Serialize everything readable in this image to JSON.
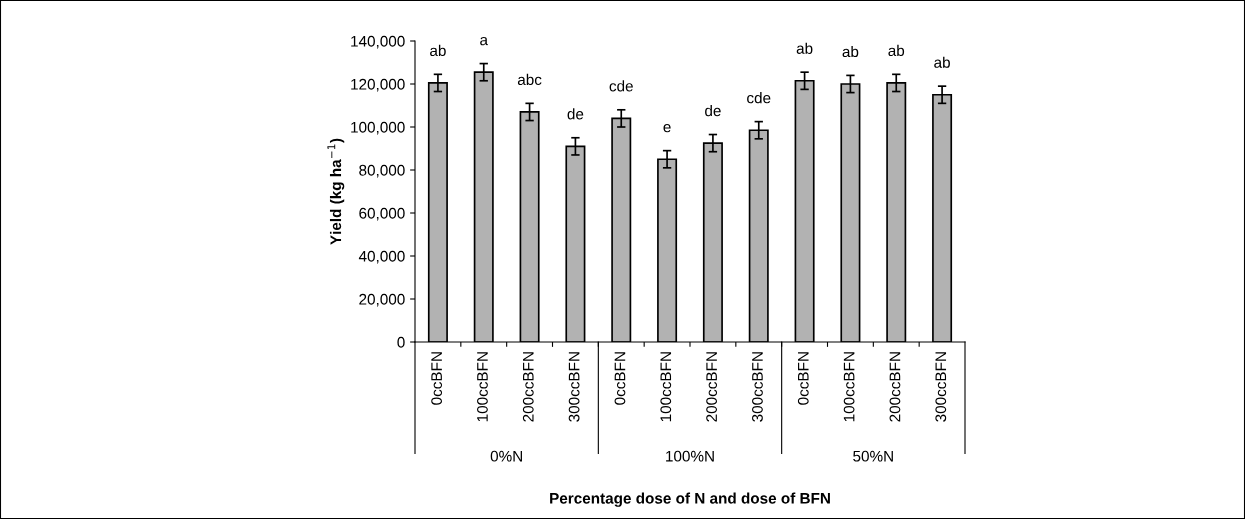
{
  "chart_data": {
    "type": "bar",
    "xlabel": "Percentage dose of N and dose of BFN",
    "ylabel": "Yield (kg ha$^{−1}$)",
    "categories": [
      "0ccBFN",
      "100ccBFN",
      "200ccBFN",
      "300ccBFN",
      "0ccBFN",
      "100ccBFN",
      "200ccBFN",
      "300ccBFN",
      "0ccBFN",
      "100ccBFN",
      "200ccBFN",
      "300ccBFN"
    ],
    "values": [
      120500,
      125500,
      107000,
      91000,
      104000,
      85000,
      92500,
      98500,
      121500,
      120000,
      120500,
      115000
    ],
    "errors": [
      4000,
      4000,
      4000,
      4000,
      4000,
      4000,
      4000,
      4000,
      4000,
      4000,
      4000,
      4000
    ],
    "value_labels": [
      "ab",
      "a",
      "abc",
      "de",
      "cde",
      "e",
      "de",
      "cde",
      "ab",
      "ab",
      "ab",
      "ab"
    ],
    "color": "#b2b2b2",
    "annotations": [
      "0%N",
      "100%N",
      "50%N"
    ],
    "ylim": [
      0,
      140000
    ],
    "yticks": [
      {
        "value": 0,
        "label": "0"
      },
      {
        "value": 20000,
        "label": "20,000"
      },
      {
        "value": 40000,
        "label": "40,000"
      },
      {
        "value": 60000,
        "label": "60,000"
      },
      {
        "value": 80000,
        "label": "80,000"
      },
      {
        "value": 100000,
        "label": "100,000"
      },
      {
        "value": 120000,
        "label": "120,000"
      },
      {
        "value": 140000,
        "label": "140,000"
      }
    ],
    "grid": false,
    "legend": false
  }
}
